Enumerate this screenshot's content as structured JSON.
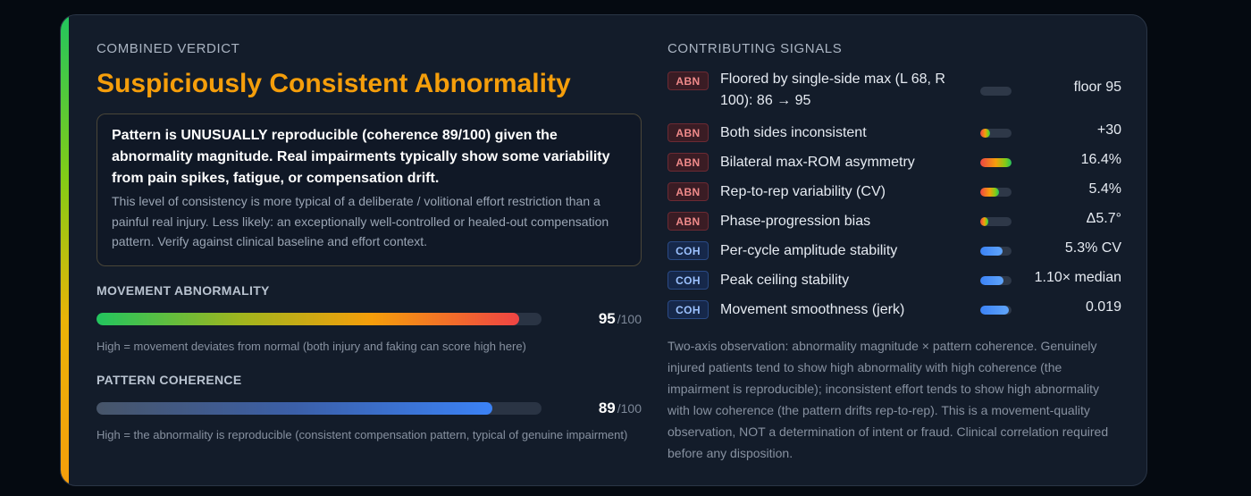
{
  "verdict": {
    "label": "COMBINED VERDICT",
    "title": "Suspiciously Consistent Abnormality",
    "strong": "Pattern is UNUSUALLY reproducible (coherence 89/100) given the abnormality magnitude. Real impairments typically show some variability from pain spikes, fatigue, or compensation drift.",
    "detail": "This level of consistency is more typical of a deliberate / volitional effort restriction than a painful real injury. Less likely: an exceptionally well-controlled or healed-out compensation pattern. Verify against clinical baseline and effort context."
  },
  "metrics": {
    "abnormality": {
      "label": "MOVEMENT ABNORMALITY",
      "score": "95",
      "max": "/100",
      "value": 95,
      "note": "High = movement deviates from normal (both injury and faking can score high here)"
    },
    "coherence": {
      "label": "PATTERN COHERENCE",
      "score": "89",
      "max": "/100",
      "value": 89,
      "note": "High = the abnormality is reproducible (consistent compensation pattern, typical of genuine impairment)"
    }
  },
  "signals": {
    "label": "CONTRIBUTING SIGNALS",
    "items": [
      {
        "tag": "ABN",
        "text": "Floored by single-side max (L 68, R 100): 86 → 95",
        "value": "floor 95",
        "level": 0
      },
      {
        "tag": "ABN",
        "text": "Both sides inconsistent",
        "value": "+30",
        "level": 0.3
      },
      {
        "tag": "ABN",
        "text": "Bilateral max-ROM asymmetry",
        "value": "16.4%",
        "level": 1.0
      },
      {
        "tag": "ABN",
        "text": "Rep-to-rep variability (CV)",
        "value": "5.4%",
        "level": 0.6
      },
      {
        "tag": "ABN",
        "text": "Phase-progression bias",
        "value": "Δ5.7°",
        "level": 0.25
      },
      {
        "tag": "COH",
        "text": "Per-cycle amplitude stability",
        "value": "5.3% CV",
        "level": 0.7
      },
      {
        "tag": "COH",
        "text": "Peak ceiling stability",
        "value": "1.10× median",
        "level": 0.75
      },
      {
        "tag": "COH",
        "text": "Movement smoothness (jerk)",
        "value": "0.019",
        "level": 0.9
      }
    ]
  },
  "footnote": "Two-axis observation: abnormality magnitude × pattern coherence. Genuinely injured patients tend to show high abnormality with high coherence (the impairment is reproducible); inconsistent effort tends to show high abnormality with low coherence (the pattern drifts rep-to-rep). This is a movement-quality observation, NOT a determination of intent or fraud. Clinical correlation required before any disposition."
}
